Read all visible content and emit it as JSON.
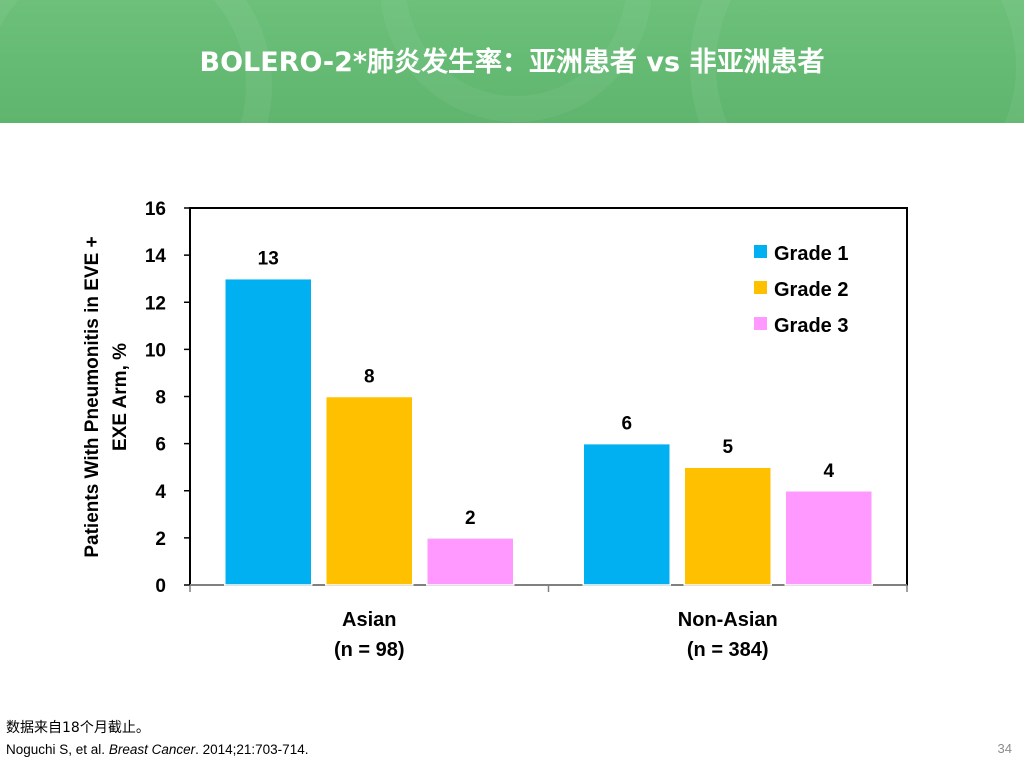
{
  "slide": {
    "title": "BOLERO-2*肺炎发生率：亚洲患者 vs 非亚洲患者",
    "footnote": "数据来自18个月截止。",
    "citation": {
      "authors": "Noguchi S, et al. ",
      "journal": "Breast Cancer",
      "details": ". 2014;21:703-714."
    },
    "page_number": "34"
  },
  "colors": {
    "header_bg": "#62b872",
    "grade1": "#00b0f0",
    "grade2": "#ffc000",
    "grade3": "#ff99ff"
  },
  "chart_data": {
    "type": "bar",
    "title": "",
    "ylabel_lines": [
      "Patients With Pneumonitis in EVE +",
      "EXE Arm, %"
    ],
    "xlabel": "",
    "ylim": [
      0,
      16
    ],
    "yticks": [
      0,
      2,
      4,
      6,
      8,
      10,
      12,
      14,
      16
    ],
    "categories": [
      {
        "line1": "Asian",
        "line2": "(n = 98)"
      },
      {
        "line1": "Non-Asian",
        "line2": "(n = 384)"
      }
    ],
    "series": [
      {
        "name": "Grade 1",
        "color": "#00b0f0",
        "values": [
          13,
          6
        ]
      },
      {
        "name": "Grade 2",
        "color": "#ffc000",
        "values": [
          8,
          5
        ]
      },
      {
        "name": "Grade 3",
        "color": "#ff99ff",
        "values": [
          2,
          4
        ]
      }
    ],
    "legend_position": "top-right",
    "grid": false
  }
}
